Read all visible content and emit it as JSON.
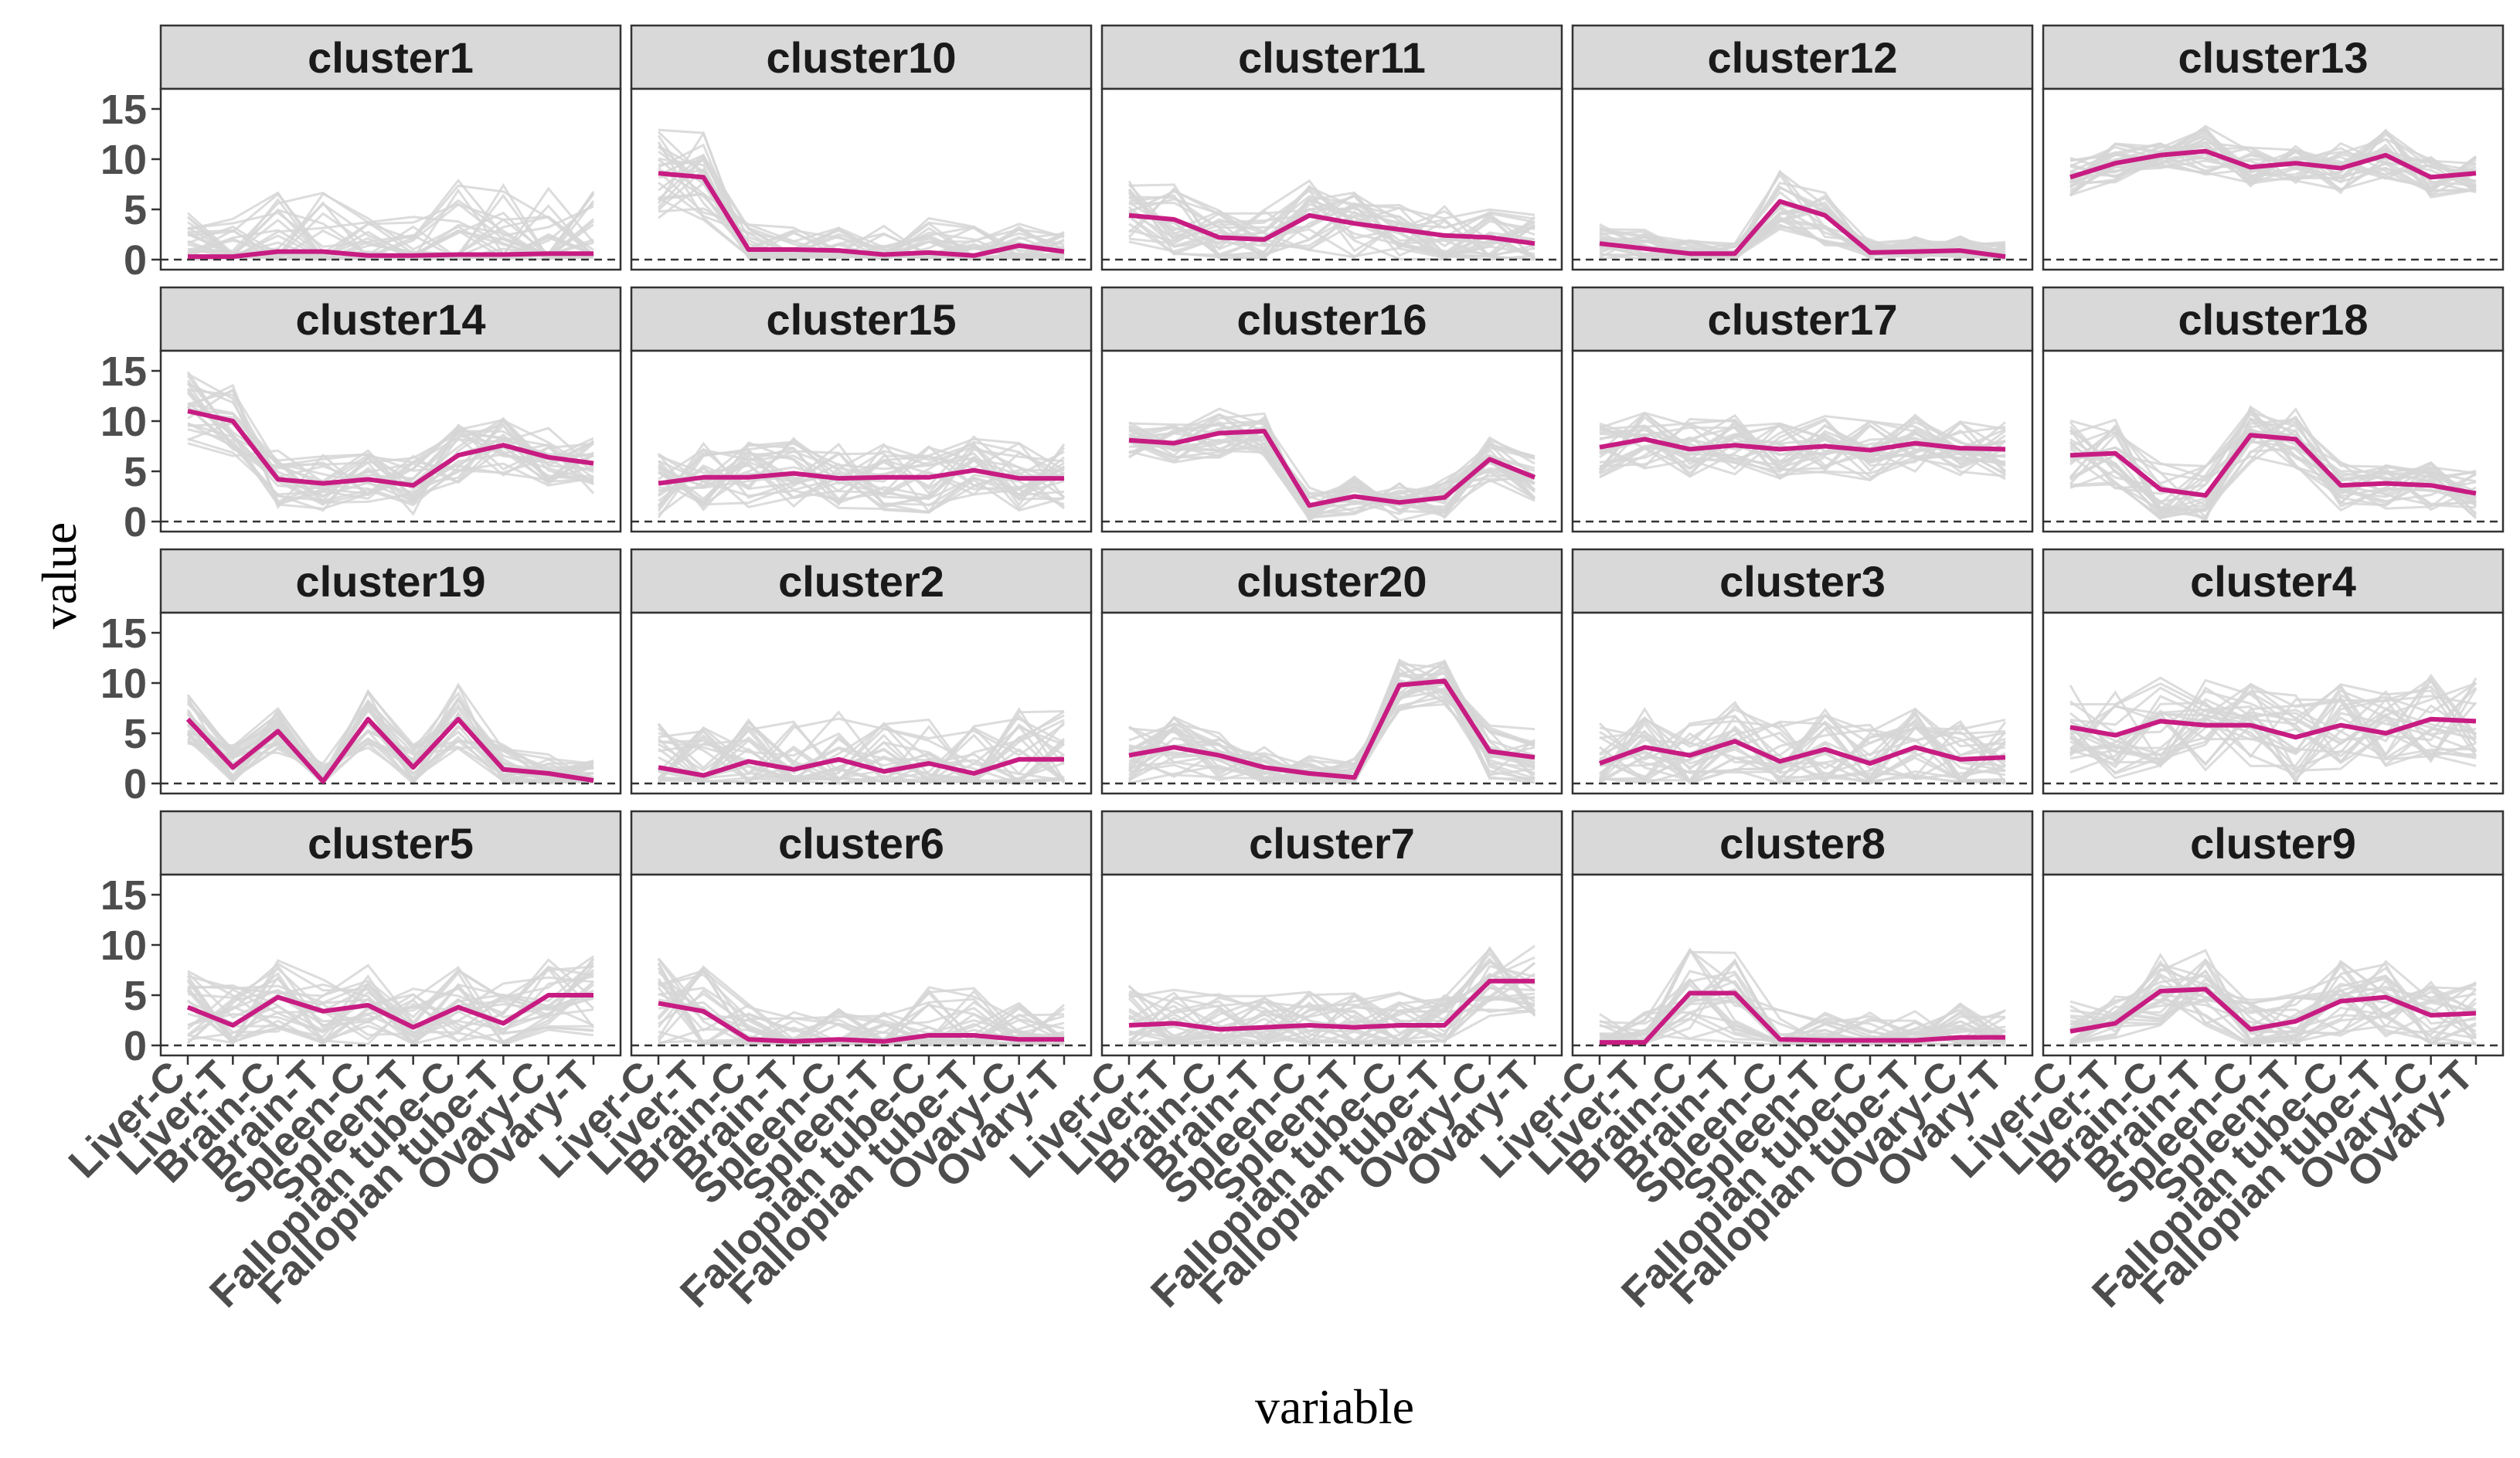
{
  "chart_data": {
    "type": "line",
    "facet_layout": "4 rows x 5 columns",
    "xlabel": "variable",
    "ylabel": "value",
    "ylim": [
      -1,
      17
    ],
    "yticks": [
      0,
      5,
      10,
      15
    ],
    "reference_line": 0,
    "categories": [
      "Liver-C",
      "Liver-T",
      "Brain-C",
      "Brain-T",
      "Spleen-C",
      "Spleen-T",
      "Fallopian tube-C",
      "Fallopian tube-T",
      "Ovary-C",
      "Ovary-T"
    ],
    "colors": {
      "mean_line": "#c71c82",
      "member_lines": "#d6d6d6",
      "strip": "#d9d9d9"
    },
    "panels": [
      {
        "title": "cluster1",
        "mean": [
          0.3,
          0.3,
          0.8,
          0.8,
          0.4,
          0.4,
          0.5,
          0.5,
          0.6,
          0.6
        ],
        "spread": [
          4.5,
          4.0,
          6.0,
          6.5,
          4.0,
          4.0,
          7.5,
          7.5,
          6.5,
          6.5
        ]
      },
      {
        "title": "cluster10",
        "mean": [
          8.6,
          8.2,
          1.0,
          1.0,
          0.9,
          0.5,
          0.7,
          0.4,
          1.4,
          0.8
        ],
        "spread": [
          4.5,
          4.5,
          2.5,
          2.5,
          2.5,
          3.0,
          4.0,
          3.0,
          2.5,
          2.5
        ]
      },
      {
        "title": "cluster11",
        "mean": [
          4.4,
          4.0,
          2.2,
          2.0,
          4.4,
          3.6,
          3.0,
          2.4,
          2.2,
          1.6
        ],
        "spread": [
          3.5,
          3.5,
          3.0,
          3.0,
          3.5,
          3.5,
          3.0,
          3.0,
          3.0,
          3.0
        ]
      },
      {
        "title": "cluster12",
        "mean": [
          1.6,
          1.1,
          0.6,
          0.6,
          5.8,
          4.4,
          0.7,
          0.8,
          0.9,
          0.3
        ],
        "spread": [
          2.0,
          2.0,
          1.5,
          1.5,
          3.0,
          3.0,
          1.5,
          1.5,
          1.5,
          1.5
        ]
      },
      {
        "title": "cluster13",
        "mean": [
          8.2,
          9.6,
          10.4,
          10.8,
          9.2,
          9.6,
          9.1,
          10.4,
          8.2,
          8.6
        ],
        "spread": [
          2.0,
          2.0,
          2.0,
          2.5,
          2.0,
          2.0,
          2.5,
          2.5,
          2.0,
          2.0
        ]
      },
      {
        "title": "cluster14",
        "mean": [
          11.0,
          10.0,
          4.2,
          3.8,
          4.2,
          3.6,
          6.6,
          7.6,
          6.4,
          5.8
        ],
        "spread": [
          4.0,
          4.0,
          3.0,
          3.0,
          3.0,
          3.0,
          3.0,
          3.0,
          3.0,
          3.0
        ]
      },
      {
        "title": "cluster15",
        "mean": [
          3.8,
          4.4,
          4.4,
          4.8,
          4.3,
          4.4,
          4.4,
          5.1,
          4.3,
          4.3
        ],
        "spread": [
          3.5,
          3.5,
          3.5,
          3.5,
          3.5,
          3.5,
          3.5,
          3.5,
          3.5,
          3.5
        ]
      },
      {
        "title": "cluster16",
        "mean": [
          8.1,
          7.8,
          8.8,
          9.0,
          1.6,
          2.5,
          1.9,
          2.4,
          6.2,
          4.4
        ],
        "spread": [
          2.0,
          2.0,
          2.5,
          2.5,
          2.0,
          2.0,
          2.0,
          2.0,
          2.5,
          2.5
        ]
      },
      {
        "title": "cluster17",
        "mean": [
          7.4,
          8.2,
          7.2,
          7.6,
          7.2,
          7.5,
          7.1,
          7.8,
          7.3,
          7.2
        ],
        "spread": [
          3.0,
          3.0,
          3.0,
          3.0,
          3.0,
          3.0,
          3.0,
          3.0,
          3.0,
          3.0
        ]
      },
      {
        "title": "cluster18",
        "mean": [
          6.6,
          6.8,
          3.2,
          2.6,
          8.6,
          8.2,
          3.6,
          3.8,
          3.6,
          2.8
        ],
        "spread": [
          3.5,
          3.5,
          3.0,
          3.0,
          3.0,
          3.0,
          2.5,
          2.5,
          2.5,
          2.5
        ]
      },
      {
        "title": "cluster19",
        "mean": [
          6.4,
          1.6,
          5.2,
          0.2,
          6.4,
          1.6,
          6.4,
          1.4,
          1.0,
          0.3
        ],
        "spread": [
          2.5,
          2.5,
          2.5,
          2.0,
          3.0,
          2.5,
          3.5,
          2.5,
          2.0,
          2.0
        ]
      },
      {
        "title": "cluster2",
        "mean": [
          1.6,
          0.8,
          2.2,
          1.4,
          2.4,
          1.2,
          2.0,
          1.0,
          2.4,
          2.4
        ],
        "spread": [
          5.0,
          5.0,
          5.0,
          5.0,
          5.0,
          5.0,
          5.0,
          5.0,
          5.0,
          5.0
        ]
      },
      {
        "title": "cluster20",
        "mean": [
          2.8,
          3.6,
          2.8,
          1.6,
          1.0,
          0.6,
          9.8,
          10.2,
          3.2,
          2.6
        ],
        "spread": [
          3.0,
          3.0,
          2.5,
          2.5,
          2.0,
          2.0,
          2.5,
          2.5,
          3.0,
          3.0
        ]
      },
      {
        "title": "cluster3",
        "mean": [
          2.0,
          3.6,
          2.8,
          4.2,
          2.2,
          3.4,
          2.0,
          3.6,
          2.4,
          2.6
        ],
        "spread": [
          4.0,
          4.0,
          4.0,
          4.0,
          4.0,
          4.0,
          4.0,
          4.0,
          4.0,
          4.0
        ]
      },
      {
        "title": "cluster4",
        "mean": [
          5.6,
          4.8,
          6.2,
          5.8,
          5.8,
          4.6,
          5.8,
          5.0,
          6.4,
          6.2
        ],
        "spread": [
          4.5,
          4.5,
          4.5,
          4.5,
          4.5,
          4.5,
          4.5,
          4.5,
          4.5,
          4.5
        ]
      },
      {
        "title": "cluster5",
        "mean": [
          3.8,
          2.0,
          4.8,
          3.4,
          4.0,
          1.8,
          3.8,
          2.2,
          5.0,
          5.0
        ],
        "spread": [
          4.0,
          4.0,
          4.0,
          4.0,
          4.0,
          4.0,
          4.0,
          4.0,
          4.0,
          4.0
        ]
      },
      {
        "title": "cluster6",
        "mean": [
          4.2,
          3.4,
          0.6,
          0.4,
          0.6,
          0.4,
          1.0,
          1.0,
          0.6,
          0.6
        ],
        "spread": [
          4.5,
          4.5,
          3.5,
          3.0,
          3.0,
          3.0,
          5.5,
          5.5,
          4.0,
          4.0
        ]
      },
      {
        "title": "cluster7",
        "mean": [
          2.0,
          2.2,
          1.6,
          1.8,
          2.0,
          1.8,
          2.0,
          2.0,
          6.4,
          6.4
        ],
        "spread": [
          4.0,
          4.0,
          3.5,
          3.5,
          3.5,
          3.5,
          3.5,
          3.5,
          3.5,
          3.5
        ]
      },
      {
        "title": "cluster8",
        "mean": [
          0.3,
          0.3,
          5.2,
          5.2,
          0.6,
          0.5,
          0.5,
          0.5,
          0.8,
          0.8
        ],
        "spread": [
          3.0,
          3.0,
          5.0,
          5.0,
          3.0,
          3.0,
          3.0,
          3.0,
          3.5,
          3.5
        ]
      },
      {
        "title": "cluster9",
        "mean": [
          1.4,
          2.2,
          5.4,
          5.6,
          1.6,
          2.4,
          4.4,
          4.8,
          3.0,
          3.2
        ],
        "spread": [
          3.0,
          3.0,
          4.0,
          4.0,
          3.0,
          3.0,
          4.0,
          4.0,
          3.5,
          3.5
        ]
      }
    ]
  }
}
